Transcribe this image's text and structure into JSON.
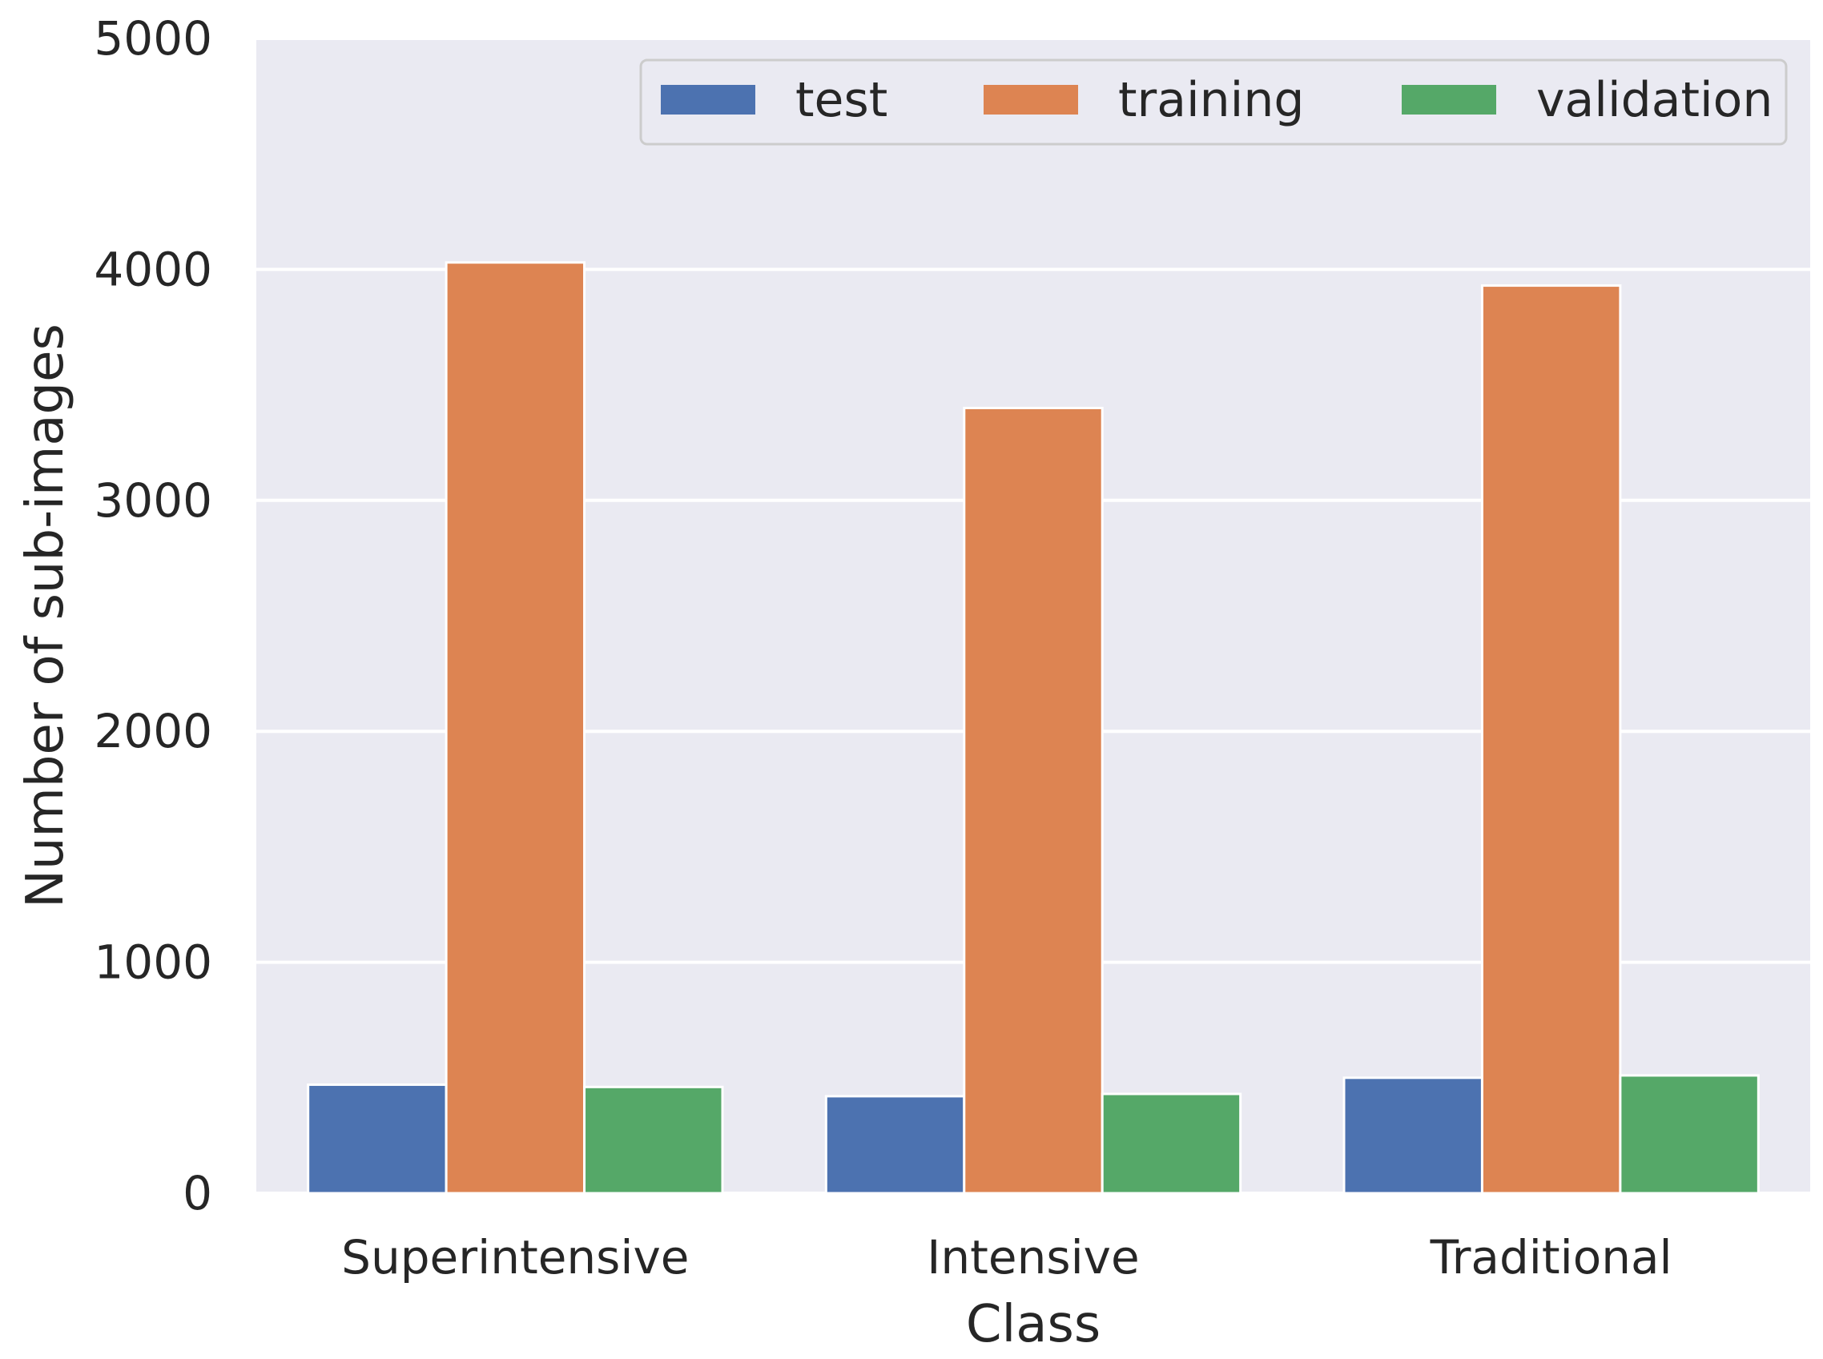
{
  "chart_data": {
    "type": "bar",
    "title": "",
    "xlabel": "Class",
    "ylabel": "Number of sub-images",
    "categories": [
      "Superintensive",
      "Intensive",
      "Traditional"
    ],
    "series": [
      {
        "name": "test",
        "values": [
          470,
          420,
          500
        ],
        "color": "#4c72b0"
      },
      {
        "name": "training",
        "values": [
          4030,
          3400,
          3930
        ],
        "color": "#dd8452"
      },
      {
        "name": "validation",
        "values": [
          460,
          430,
          510
        ],
        "color": "#55a868"
      }
    ],
    "ylim": [
      0,
      5000
    ],
    "yticks": [
      "0",
      "1000",
      "2000",
      "3000",
      "4000",
      "5000"
    ],
    "grid": true,
    "background_color": "#eaeaf2",
    "legend_position": "top-right",
    "legend_columns": 3
  }
}
